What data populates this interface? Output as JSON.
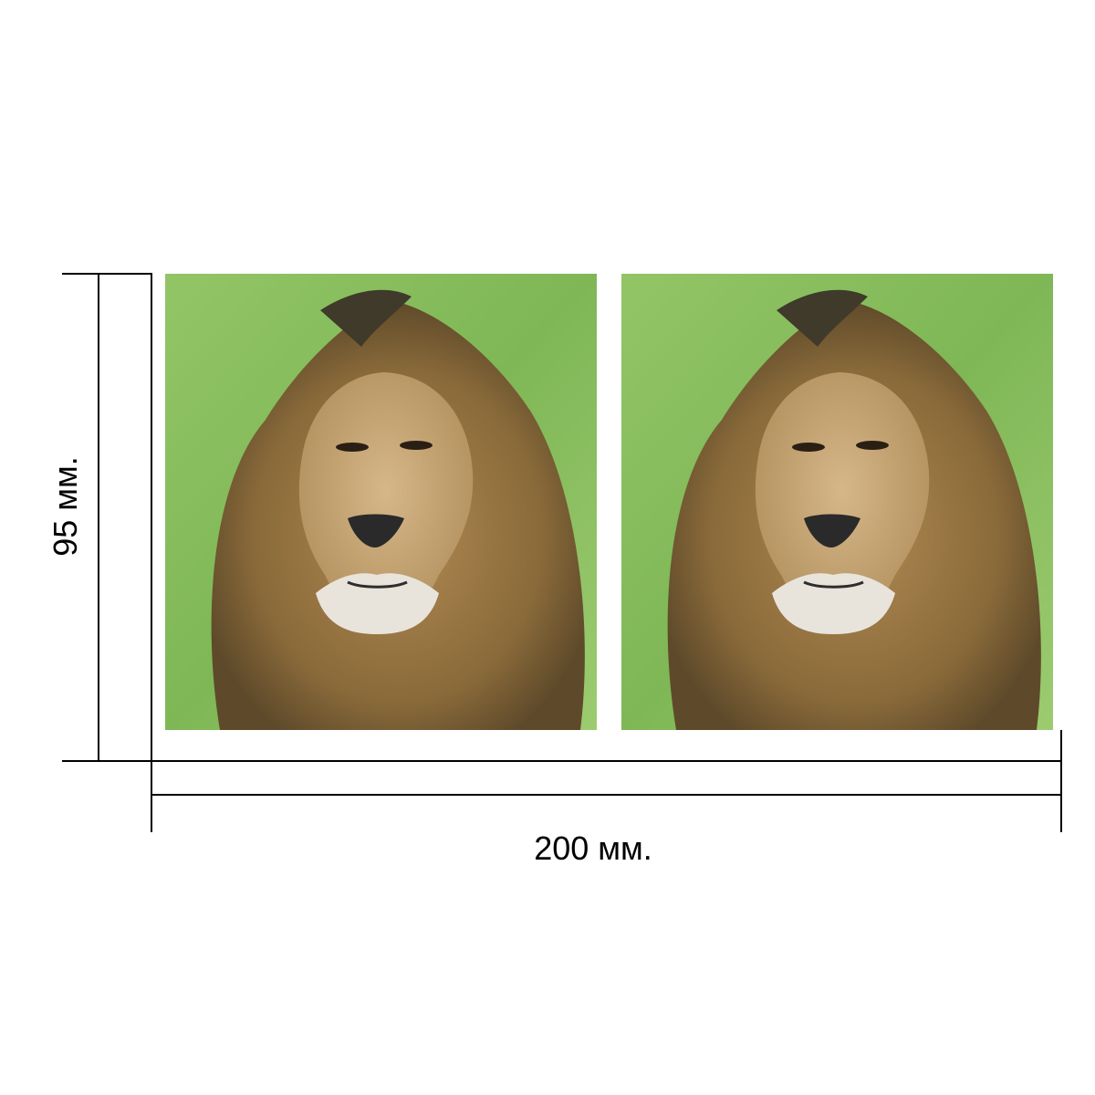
{
  "dimensions": {
    "height_label": "95 мм.",
    "width_label": "200 мм."
  },
  "panels": [
    {
      "icon": "lion-portrait-image"
    },
    {
      "icon": "lion-portrait-image"
    }
  ],
  "colors": {
    "background": "#ffffff",
    "grass": "#8cc060",
    "mane": "#9c7a44",
    "face": "#c9a877",
    "muzzle": "#e8e4dc",
    "line": "#000000"
  }
}
